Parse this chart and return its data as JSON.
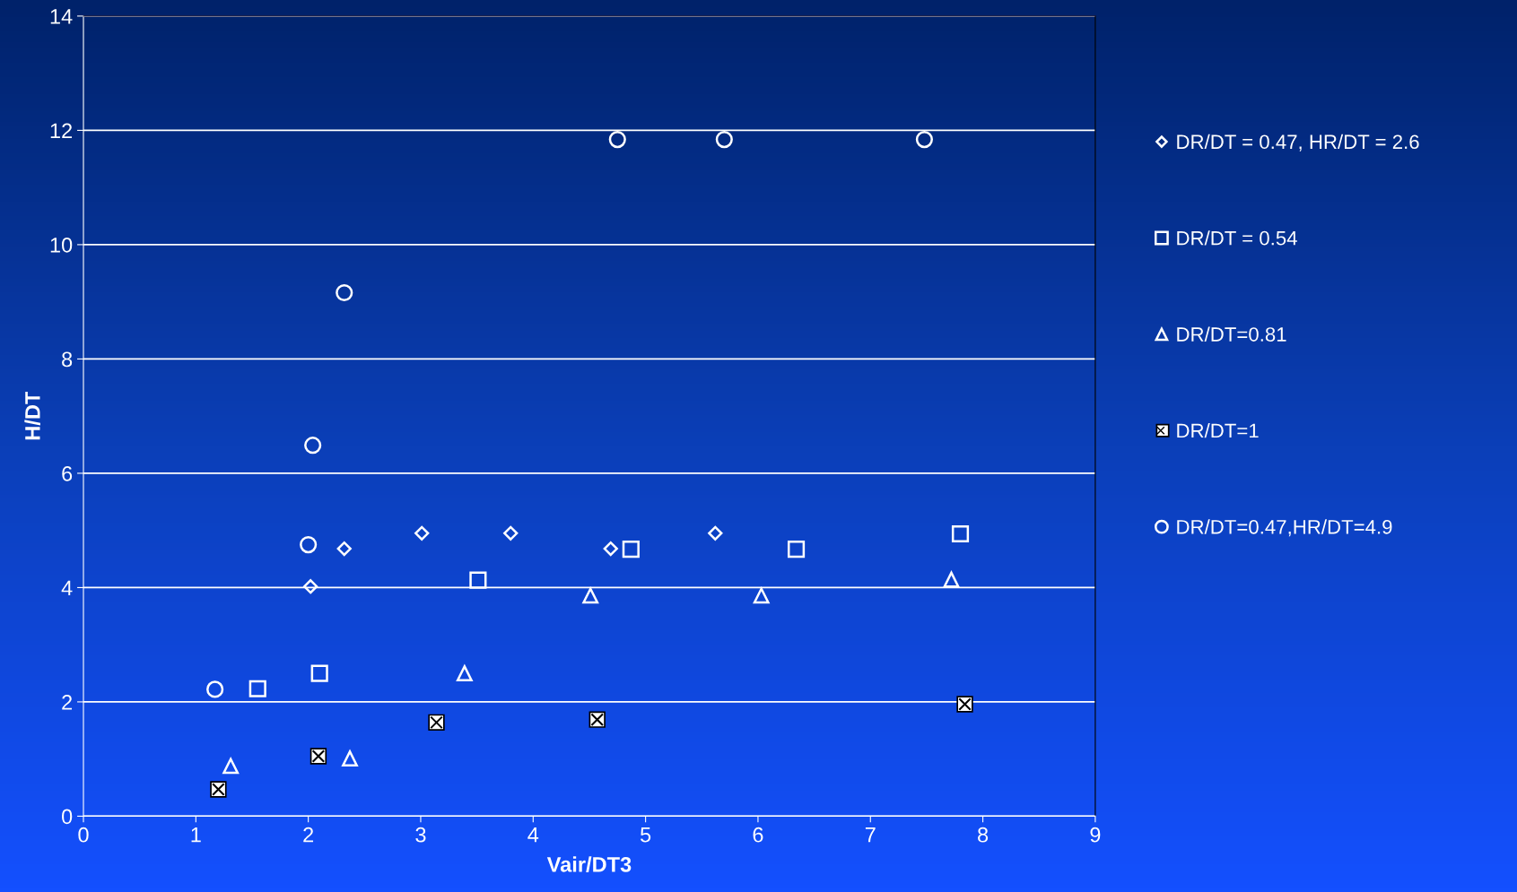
{
  "chart_data": {
    "type": "scatter",
    "xlabel": "Vair/DT3",
    "ylabel": "H/DT",
    "xlim": [
      0,
      9
    ],
    "xticks": [
      0,
      1,
      2,
      3,
      4,
      5,
      6,
      7,
      8,
      9
    ],
    "ylim": [
      0,
      14
    ],
    "yticks": [
      0,
      2,
      4,
      6,
      8,
      10,
      12,
      14
    ],
    "grid": "y",
    "legend": "right",
    "series": [
      {
        "name": "DR/DT = 0.47, HR/DT = 2.6",
        "color": "#ffffff",
        "marker": "diamond",
        "x": [
          2.02,
          2.32,
          3.01,
          3.8,
          4.69,
          5.62
        ],
        "values": [
          4.02,
          4.68,
          4.95,
          4.95,
          4.68,
          4.95
        ]
      },
      {
        "name": "DR/DT = 0.54",
        "color": "#ffffff",
        "marker": "square",
        "x": [
          1.55,
          2.1,
          3.51,
          4.87,
          6.34,
          7.8
        ],
        "values": [
          2.23,
          2.5,
          4.13,
          4.67,
          4.67,
          4.94
        ]
      },
      {
        "name": "DR/DT=0.81",
        "color": "#ffffff",
        "marker": "triangle",
        "x": [
          1.31,
          2.37,
          3.39,
          4.51,
          6.03,
          7.72
        ],
        "values": [
          0.88,
          1.01,
          2.5,
          3.86,
          3.86,
          4.14
        ]
      },
      {
        "name": "DR/DT=1",
        "color": "#000000",
        "x": [
          1.2,
          2.09,
          3.14,
          4.57,
          7.84
        ],
        "values": [
          0.47,
          1.05,
          1.64,
          1.69,
          1.96
        ]
      },
      {
        "name": "DR/DT=0.47,HR/DT=4.9",
        "color": "#ffffff",
        "marker": "circle",
        "x": [
          1.17,
          2.0,
          2.04,
          2.32,
          4.75,
          5.7,
          7.48
        ],
        "values": [
          2.22,
          4.75,
          6.49,
          9.16,
          11.84,
          11.84,
          11.84
        ]
      }
    ]
  }
}
